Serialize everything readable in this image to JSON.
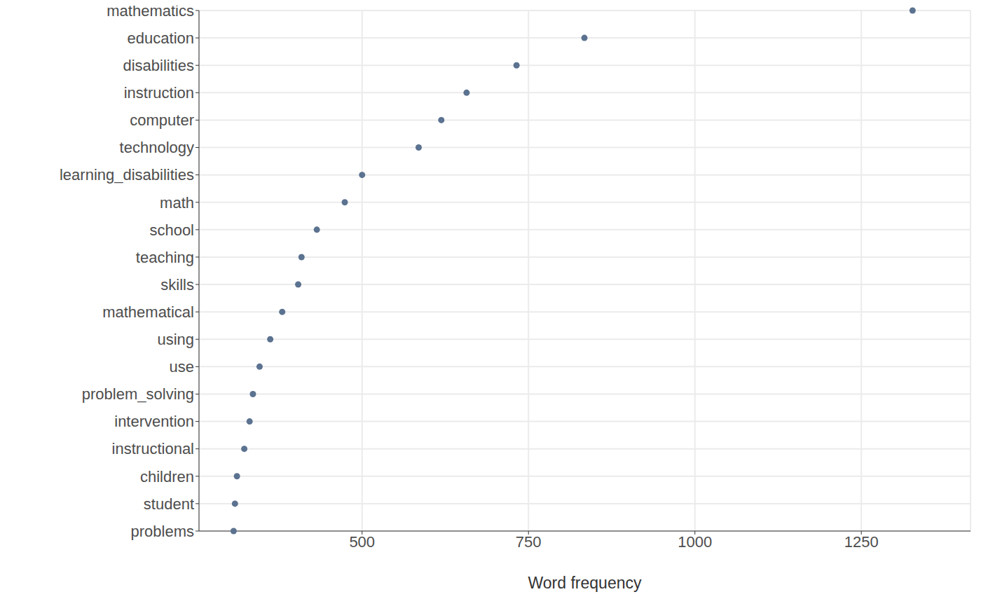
{
  "chart_data": {
    "type": "dot",
    "orientation": "horizontal",
    "xlabel": "Word frequency",
    "categories": [
      "mathematics",
      "education",
      "disabilities",
      "instruction",
      "computer",
      "technology",
      "learning_disabilities",
      "math",
      "school",
      "teaching",
      "skills",
      "mathematical",
      "using",
      "use",
      "problem_solving",
      "intervention",
      "instructional",
      "children",
      "student",
      "problems"
    ],
    "values": [
      1327,
      834,
      732,
      657,
      619,
      585,
      500,
      474,
      432,
      409,
      404,
      380,
      362,
      346,
      336,
      331,
      323,
      312,
      309,
      307
    ],
    "color": "#5b7290",
    "xlim": [
      255,
      1414
    ],
    "xticks": [
      500,
      750,
      1000,
      1250
    ],
    "grid": true
  }
}
